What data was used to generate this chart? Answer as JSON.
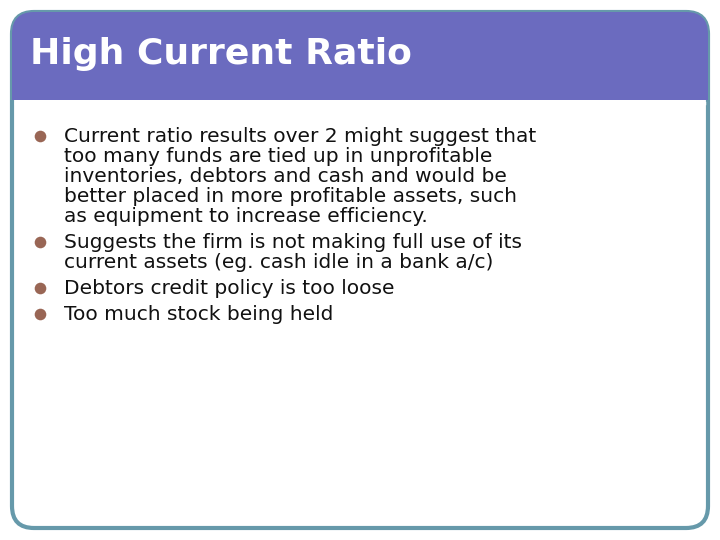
{
  "title": "High Current Ratio",
  "title_bg_color": "#6B6BBF",
  "title_text_color": "#FFFFFF",
  "title_fontsize": 26,
  "body_bg_color": "#FFFFFF",
  "border_color": "#6699AA",
  "bullet_color": "#996655",
  "bullet_text_color": "#111111",
  "bullet_fontsize": 14.5,
  "separator_color": "#FFFFFF",
  "bullets": [
    "Current ratio results over 2 might suggest that\ntoo many funds are tied up in unprofitable\ninventories, debtors and cash and would be\nbetter placed in more profitable assets, such\nas equipment to increase efficiency.",
    "Suggests the firm is not making full use of its\ncurrent assets (eg. cash idle in a bank a/c)",
    "Debtors credit policy is too loose",
    "Too much stock being held"
  ],
  "fig_width": 7.2,
  "fig_height": 5.4,
  "dpi": 100
}
